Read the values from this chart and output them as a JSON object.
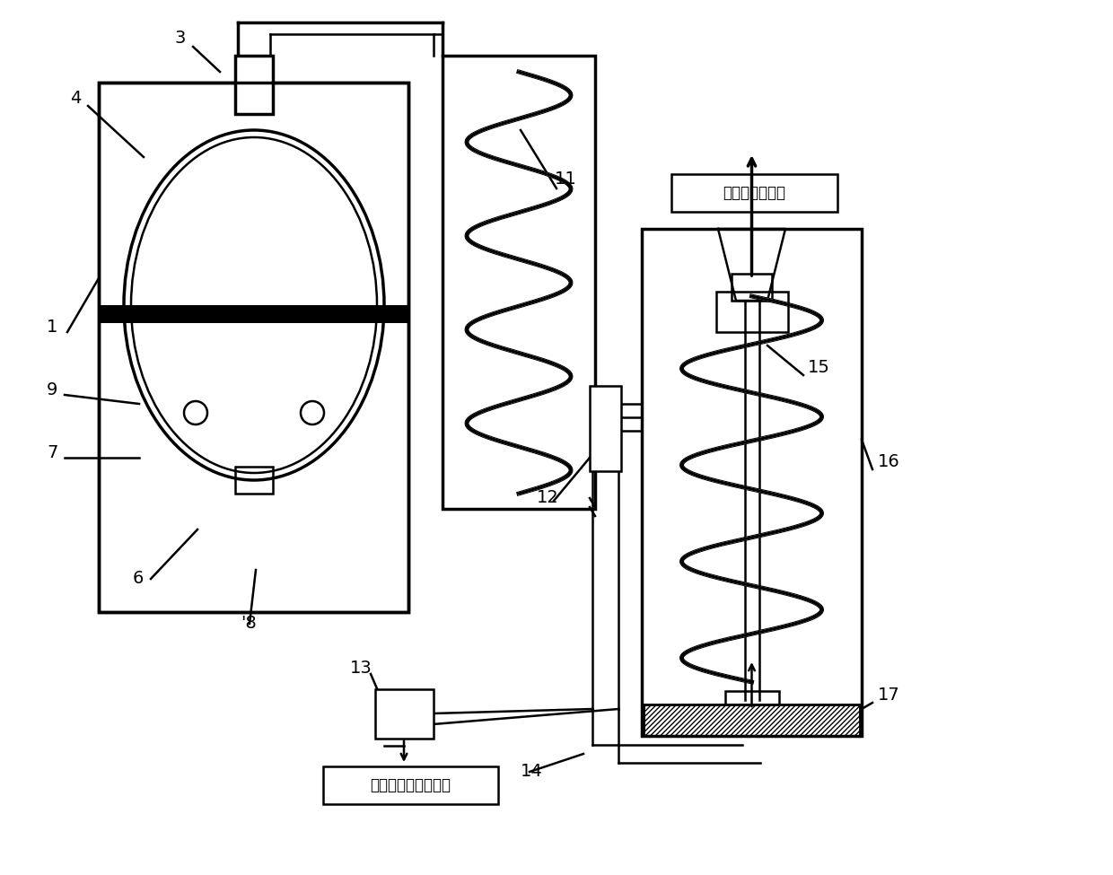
{
  "bg_color": "#ffffff",
  "line_color": "#000000",
  "box1_label": "通往加热炉炉腹",
  "box2_label": "通往第二单元外水箱",
  "lw": 1.8,
  "lw_thick": 2.5,
  "lw_band": 0
}
